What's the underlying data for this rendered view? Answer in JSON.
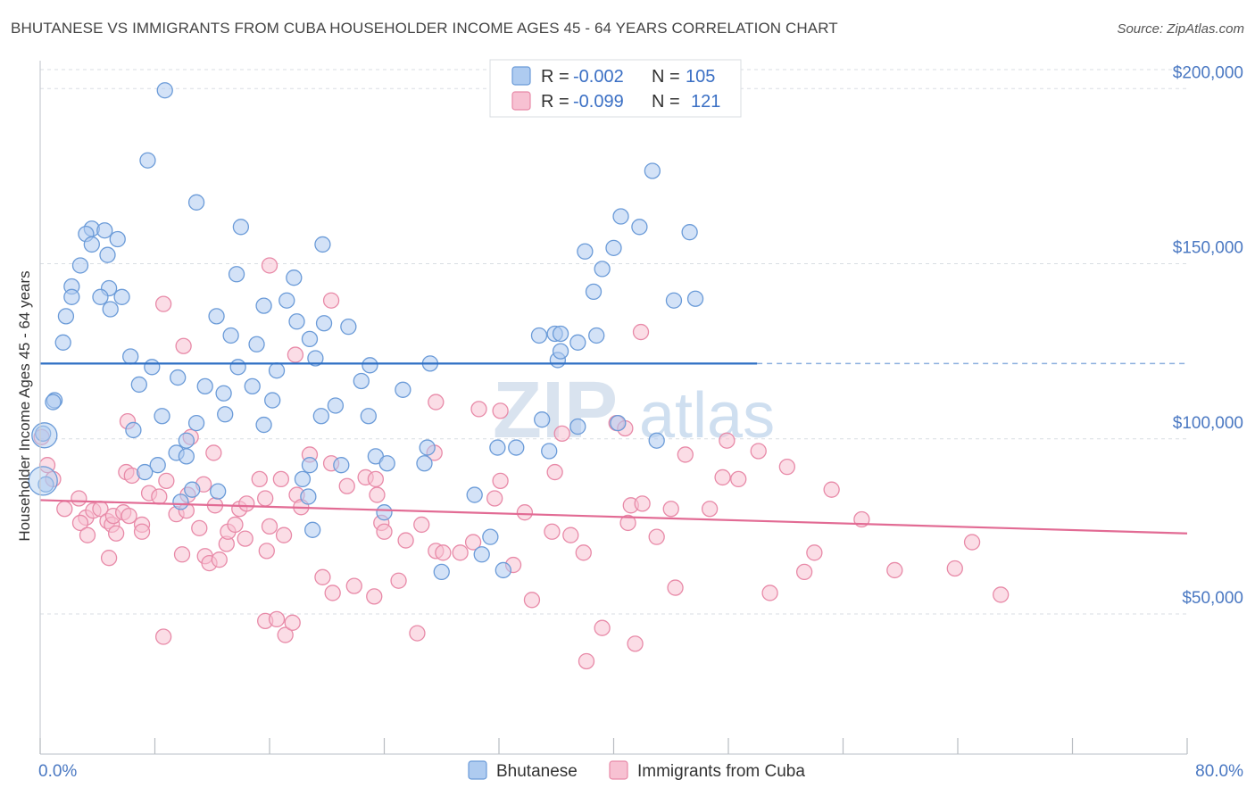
{
  "title": "BHUTANESE VS IMMIGRANTS FROM CUBA HOUSEHOLDER INCOME AGES 45 - 64 YEARS CORRELATION CHART",
  "source": "Source: ZipAtlas.com",
  "colors": {
    "blue_fill": "#aecbf0",
    "blue_stroke": "#6b9bd8",
    "blue_line": "#2e6fc4",
    "pink_fill": "#f7c1d2",
    "pink_stroke": "#e88aa8",
    "pink_line": "#e26b94",
    "grid": "#d9dde3",
    "tick_text": "#4a78c2"
  },
  "legend": {
    "rows": [
      {
        "r_label": "R = ",
        "r_value": "-0.002",
        "n_label": "N = ",
        "n_value": "105"
      },
      {
        "r_label": "R = ",
        "r_value": "-0.099",
        "n_label": "N = ",
        "n_value": "121"
      }
    ]
  },
  "bottom_legend": [
    "Bhutanese",
    "Immigrants from Cuba"
  ],
  "watermark": {
    "zip": "ZIP",
    "atlas": "atlas"
  },
  "chart_data": {
    "type": "scatter",
    "ylabel": "Householder Income Ages 45 - 64 years",
    "xlim": [
      0,
      80
    ],
    "ylim": [
      10000,
      210000
    ],
    "x_tick_labels": [
      "0.0%",
      "80.0%"
    ],
    "y_ticks": [
      {
        "value": 50000,
        "label": "$50,000"
      },
      {
        "value": 100000,
        "label": "$100,000"
      },
      {
        "value": 150000,
        "label": "$150,000"
      },
      {
        "value": 200000,
        "label": "$200,000"
      }
    ],
    "series": [
      {
        "name": "Bhutanese",
        "trend": {
          "x": [
            0,
            50
          ],
          "y": [
            121500,
            121500
          ],
          "dashed_to": 80
        },
        "points": [
          [
            8.7,
            199500
          ],
          [
            7.5,
            179500
          ],
          [
            10.9,
            167500
          ],
          [
            14.0,
            160500
          ],
          [
            3.6,
            160000
          ],
          [
            4.5,
            159500
          ],
          [
            3.2,
            158500
          ],
          [
            5.4,
            157000
          ],
          [
            3.6,
            155500
          ],
          [
            19.7,
            155500
          ],
          [
            4.7,
            152500
          ],
          [
            2.8,
            149500
          ],
          [
            13.7,
            147000
          ],
          [
            17.7,
            146000
          ],
          [
            2.2,
            143500
          ],
          [
            4.8,
            143000
          ],
          [
            2.2,
            140500
          ],
          [
            4.2,
            140500
          ],
          [
            5.7,
            140500
          ],
          [
            17.2,
            139500
          ],
          [
            15.6,
            138000
          ],
          [
            4.9,
            137000
          ],
          [
            1.8,
            135000
          ],
          [
            12.3,
            135000
          ],
          [
            17.9,
            133500
          ],
          [
            19.8,
            133000
          ],
          [
            21.5,
            132000
          ],
          [
            13.3,
            129500
          ],
          [
            18.8,
            128500
          ],
          [
            15.1,
            127000
          ],
          [
            1.6,
            127500
          ],
          [
            6.3,
            123500
          ],
          [
            19.2,
            123000
          ],
          [
            23.0,
            121000
          ],
          [
            7.8,
            120500
          ],
          [
            13.8,
            120500
          ],
          [
            16.5,
            119500
          ],
          [
            27.2,
            121500
          ],
          [
            9.6,
            117500
          ],
          [
            22.4,
            116500
          ],
          [
            6.9,
            115500
          ],
          [
            11.5,
            115000
          ],
          [
            14.8,
            115000
          ],
          [
            25.3,
            114000
          ],
          [
            12.8,
            113000
          ],
          [
            16.2,
            111000
          ],
          [
            20.6,
            109500
          ],
          [
            1.0,
            111000
          ],
          [
            0.9,
            110500
          ],
          [
            8.5,
            106500
          ],
          [
            12.9,
            107000
          ],
          [
            19.6,
            106500
          ],
          [
            22.9,
            106500
          ],
          [
            10.9,
            104500
          ],
          [
            15.6,
            104000
          ],
          [
            6.5,
            102500
          ],
          [
            0.2,
            101500
          ],
          [
            10.2,
            99500
          ],
          [
            9.5,
            96000
          ],
          [
            10.2,
            95000
          ],
          [
            23.4,
            95000
          ],
          [
            27.0,
            97500
          ],
          [
            24.2,
            93000
          ],
          [
            8.2,
            92500
          ],
          [
            18.8,
            92500
          ],
          [
            21.0,
            92500
          ],
          [
            26.8,
            93000
          ],
          [
            7.3,
            90500
          ],
          [
            18.3,
            88500
          ],
          [
            10.6,
            85500
          ],
          [
            12.4,
            85000
          ],
          [
            0.4,
            87000
          ],
          [
            9.8,
            82000
          ],
          [
            18.7,
            83500
          ],
          [
            30.3,
            84000
          ],
          [
            19.0,
            74000
          ],
          [
            24.0,
            79000
          ],
          [
            28.0,
            62000
          ],
          [
            30.8,
            67000
          ],
          [
            31.4,
            72000
          ],
          [
            32.3,
            62500
          ],
          [
            35.9,
            130000
          ],
          [
            34.8,
            129500
          ],
          [
            37.5,
            127500
          ],
          [
            38.8,
            129500
          ],
          [
            36.1,
            122500
          ],
          [
            36.3,
            125000
          ],
          [
            36.3,
            130000
          ],
          [
            31.9,
            97500
          ],
          [
            33.2,
            97500
          ],
          [
            35.0,
            105500
          ],
          [
            35.5,
            96500
          ],
          [
            40.3,
            104500
          ],
          [
            43.0,
            99500
          ],
          [
            37.5,
            103500
          ],
          [
            38.0,
            153500
          ],
          [
            40.0,
            154500
          ],
          [
            40.5,
            163500
          ],
          [
            41.8,
            160500
          ],
          [
            38.6,
            142000
          ],
          [
            39.2,
            148500
          ],
          [
            42.7,
            176500
          ],
          [
            45.3,
            159000
          ],
          [
            45.7,
            140000
          ],
          [
            44.2,
            139500
          ]
        ]
      },
      {
        "name": "Immigrants from Cuba",
        "trend": {
          "x": [
            0,
            80
          ],
          "y": [
            82500,
            73000
          ]
        },
        "points": [
          [
            0.1,
            100500
          ],
          [
            0.5,
            92500
          ],
          [
            0.9,
            88500
          ],
          [
            1.7,
            80000
          ],
          [
            2.7,
            83000
          ],
          [
            3.2,
            77500
          ],
          [
            3.7,
            79500
          ],
          [
            2.8,
            76000
          ],
          [
            3.3,
            72500
          ],
          [
            4.2,
            80000
          ],
          [
            4.7,
            76500
          ],
          [
            5.0,
            75500
          ],
          [
            5.1,
            78000
          ],
          [
            5.8,
            79000
          ],
          [
            6.2,
            78000
          ],
          [
            5.3,
            73000
          ],
          [
            4.8,
            66000
          ],
          [
            6.0,
            90500
          ],
          [
            6.1,
            105000
          ],
          [
            6.4,
            89500
          ],
          [
            7.1,
            75500
          ],
          [
            7.6,
            84500
          ],
          [
            7.1,
            73500
          ],
          [
            8.3,
            83500
          ],
          [
            8.8,
            88000
          ],
          [
            9.5,
            78500
          ],
          [
            10.3,
            84000
          ],
          [
            10.2,
            79500
          ],
          [
            9.9,
            67000
          ],
          [
            10.5,
            100500
          ],
          [
            11.4,
            87000
          ],
          [
            11.1,
            74500
          ],
          [
            11.5,
            66500
          ],
          [
            12.1,
            96000
          ],
          [
            12.2,
            81000
          ],
          [
            11.8,
            64500
          ],
          [
            12.5,
            65500
          ],
          [
            13.0,
            70000
          ],
          [
            13.1,
            73500
          ],
          [
            13.6,
            75500
          ],
          [
            13.9,
            80000
          ],
          [
            14.4,
            81500
          ],
          [
            14.3,
            71500
          ],
          [
            15.3,
            88500
          ],
          [
            15.7,
            83000
          ],
          [
            16.0,
            75000
          ],
          [
            15.8,
            68000
          ],
          [
            16.8,
            88500
          ],
          [
            17.0,
            72500
          ],
          [
            17.9,
            84000
          ],
          [
            18.2,
            80500
          ],
          [
            18.8,
            95500
          ],
          [
            19.7,
            60500
          ],
          [
            20.4,
            56000
          ],
          [
            20.3,
            93000
          ],
          [
            21.4,
            86500
          ],
          [
            21.9,
            58000
          ],
          [
            22.7,
            89000
          ],
          [
            23.4,
            88500
          ],
          [
            23.5,
            84000
          ],
          [
            23.8,
            76000
          ],
          [
            24.0,
            73500
          ],
          [
            23.3,
            55000
          ],
          [
            25.0,
            59500
          ],
          [
            25.5,
            71000
          ],
          [
            26.6,
            75500
          ],
          [
            27.5,
            96000
          ],
          [
            27.6,
            68000
          ],
          [
            28.1,
            67500
          ],
          [
            29.3,
            67500
          ],
          [
            30.2,
            70500
          ],
          [
            31.7,
            83000
          ],
          [
            32.1,
            88000
          ],
          [
            32.1,
            108000
          ],
          [
            33.0,
            64000
          ],
          [
            33.8,
            79000
          ],
          [
            34.3,
            54000
          ],
          [
            35.7,
            73500
          ],
          [
            36.4,
            101500
          ],
          [
            35.9,
            90500
          ],
          [
            37.0,
            72500
          ],
          [
            37.9,
            67500
          ],
          [
            38.1,
            36500
          ],
          [
            39.2,
            46000
          ],
          [
            40.2,
            104500
          ],
          [
            40.8,
            103000
          ],
          [
            41.0,
            76000
          ],
          [
            41.2,
            81000
          ],
          [
            41.5,
            41500
          ],
          [
            42.0,
            81500
          ],
          [
            43.0,
            72000
          ],
          [
            44.0,
            80000
          ],
          [
            44.3,
            57500
          ],
          [
            45.0,
            95500
          ],
          [
            46.7,
            80000
          ],
          [
            47.6,
            89000
          ],
          [
            47.9,
            99500
          ],
          [
            48.7,
            88500
          ],
          [
            50.1,
            96500
          ],
          [
            50.9,
            56000
          ],
          [
            52.1,
            92000
          ],
          [
            53.3,
            62000
          ],
          [
            54.0,
            67500
          ],
          [
            55.2,
            85500
          ],
          [
            57.3,
            77000
          ],
          [
            59.6,
            62500
          ],
          [
            63.8,
            63000
          ],
          [
            65.0,
            70500
          ],
          [
            67.0,
            55500
          ],
          [
            8.6,
            43500
          ],
          [
            15.7,
            48000
          ],
          [
            16.5,
            48500
          ],
          [
            17.1,
            44000
          ],
          [
            17.6,
            47500
          ],
          [
            26.3,
            44500
          ],
          [
            16.0,
            149500
          ],
          [
            8.6,
            138500
          ],
          [
            20.3,
            139500
          ],
          [
            10.0,
            126500
          ],
          [
            17.8,
            124000
          ],
          [
            27.6,
            110500
          ],
          [
            30.6,
            108500
          ],
          [
            41.9,
            130500
          ]
        ]
      }
    ]
  }
}
